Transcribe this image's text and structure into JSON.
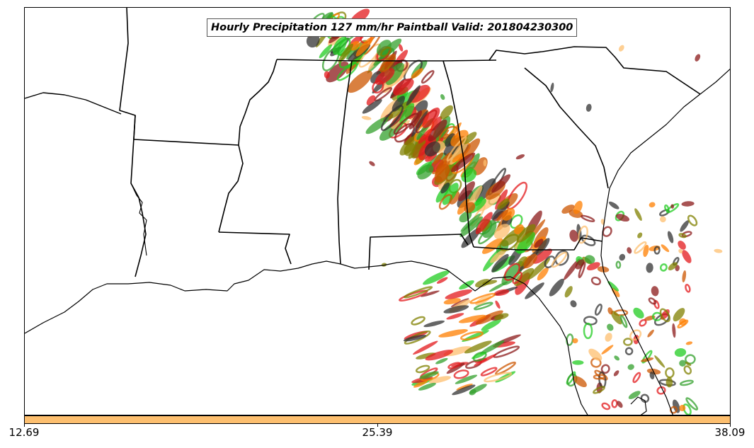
{
  "title": "Hourly Precipitation 127 mm/hr Paintball Valid: 201804230300",
  "colorbar": {
    "color": "#fdbf6f",
    "ticks": [
      "12.69",
      "25.39",
      "38.09"
    ]
  },
  "member_colors": [
    "#33a02c",
    "#e31a1c",
    "#ff7f00",
    "#fdbf6f",
    "#808000",
    "#8b1a1a",
    "#22cc22",
    "#333333",
    "#cc5500"
  ]
}
